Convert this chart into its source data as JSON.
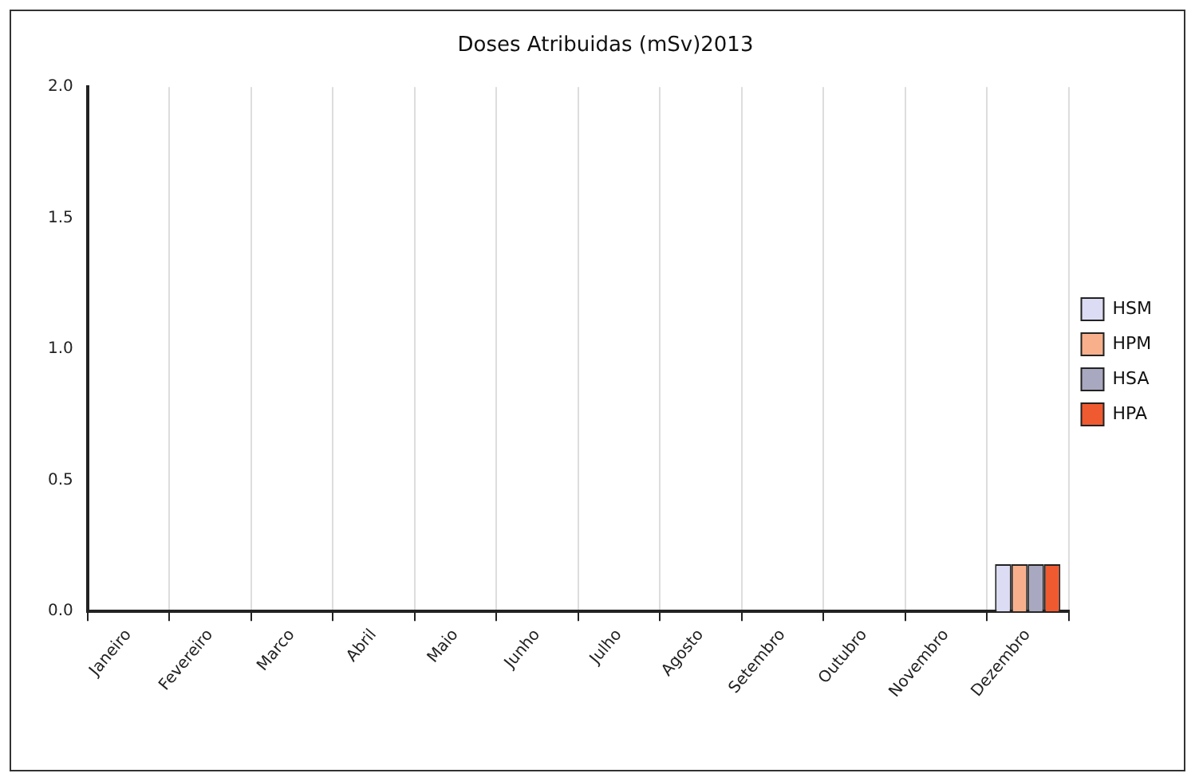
{
  "chart_data": {
    "type": "bar",
    "title": "Doses Atribuidas (mSv)2013",
    "categories": [
      "Janeiro",
      "Fevereiro",
      "Marco",
      "Abril",
      "Maio",
      "Junho",
      "Julho",
      "Agosto",
      "Setembro",
      "Outubro",
      "Novembro",
      "Dezembro"
    ],
    "series": [
      {
        "name": "HSM",
        "color": "#dcdcf4",
        "values": [
          0,
          0,
          0,
          0,
          0,
          0,
          0,
          0,
          0,
          0,
          0,
          0.18
        ]
      },
      {
        "name": "HPM",
        "color": "#f8b08c",
        "values": [
          0,
          0,
          0,
          0,
          0,
          0,
          0,
          0,
          0,
          0,
          0,
          0.18
        ]
      },
      {
        "name": "HSA",
        "color": "#a8a8c0",
        "values": [
          0,
          0,
          0,
          0,
          0,
          0,
          0,
          0,
          0,
          0,
          0,
          0.18
        ]
      },
      {
        "name": "HPA",
        "color": "#f05a30",
        "values": [
          0,
          0,
          0,
          0,
          0,
          0,
          0,
          0,
          0,
          0,
          0,
          0.18
        ]
      }
    ],
    "ylim": [
      0,
      2
    ],
    "yticks": [
      {
        "value": 0,
        "label": "0.0"
      },
      {
        "value": 0.5,
        "label": "0.5"
      },
      {
        "value": 1,
        "label": "1.0"
      },
      {
        "value": 1.5,
        "label": "1.5"
      },
      {
        "value": 2,
        "label": "2.0"
      }
    ],
    "grid": "x",
    "legend": "right"
  }
}
